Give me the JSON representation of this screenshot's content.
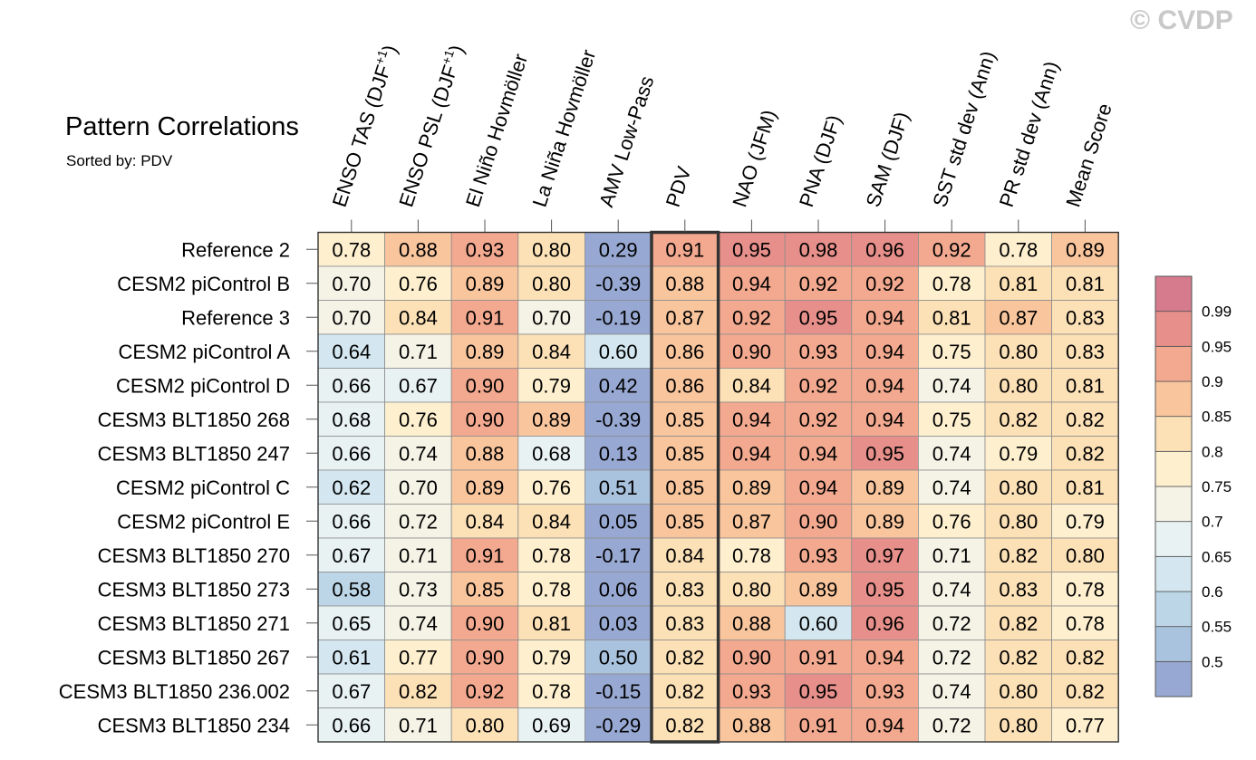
{
  "chart_data": {
    "type": "heatmap",
    "title": "Pattern Correlations",
    "subtitle": "Sorted by: PDV",
    "watermark": "© CVDP",
    "columns": [
      {
        "label": "ENSO TAS (DJF",
        "sup": "+1",
        "tail": ")"
      },
      {
        "label": "ENSO PSL (DJF",
        "sup": "+1",
        "tail": ")"
      },
      {
        "label": "El Niño Hovmöller",
        "sup": "",
        "tail": ""
      },
      {
        "label": "La Niña Hovmöller",
        "sup": "",
        "tail": ""
      },
      {
        "label": "AMV Low-Pass",
        "sup": "",
        "tail": ""
      },
      {
        "label": "PDV",
        "sup": "",
        "tail": ""
      },
      {
        "label": "NAO (JFM)",
        "sup": "",
        "tail": ""
      },
      {
        "label": "PNA (DJF)",
        "sup": "",
        "tail": ""
      },
      {
        "label": "SAM (DJF)",
        "sup": "",
        "tail": ""
      },
      {
        "label": "SST std dev (Ann)",
        "sup": "",
        "tail": ""
      },
      {
        "label": "PR std dev (Ann)",
        "sup": "",
        "tail": ""
      },
      {
        "label": "Mean Score",
        "sup": "",
        "tail": ""
      }
    ],
    "highlighted_column": "PDV",
    "rows": [
      {
        "label": "Reference 2",
        "values": [
          "0.78",
          "0.88",
          "0.93",
          "0.80",
          "0.29",
          "0.91",
          "0.95",
          "0.98",
          "0.96",
          "0.92",
          "0.78",
          "0.89"
        ]
      },
      {
        "label": "CESM2 piControl B",
        "values": [
          "0.70",
          "0.76",
          "0.89",
          "0.80",
          "-0.39",
          "0.88",
          "0.94",
          "0.92",
          "0.92",
          "0.78",
          "0.81",
          "0.81"
        ]
      },
      {
        "label": "Reference 3",
        "values": [
          "0.70",
          "0.84",
          "0.91",
          "0.70",
          "-0.19",
          "0.87",
          "0.92",
          "0.95",
          "0.94",
          "0.81",
          "0.87",
          "0.83"
        ]
      },
      {
        "label": "CESM2 piControl A",
        "values": [
          "0.64",
          "0.71",
          "0.89",
          "0.84",
          "0.60",
          "0.86",
          "0.90",
          "0.93",
          "0.94",
          "0.75",
          "0.80",
          "0.83"
        ]
      },
      {
        "label": "CESM2 piControl D",
        "values": [
          "0.66",
          "0.67",
          "0.90",
          "0.79",
          "0.42",
          "0.86",
          "0.84",
          "0.92",
          "0.94",
          "0.74",
          "0.80",
          "0.81"
        ]
      },
      {
        "label": "CESM3 BLT1850 268",
        "values": [
          "0.68",
          "0.76",
          "0.90",
          "0.89",
          "-0.39",
          "0.85",
          "0.94",
          "0.92",
          "0.94",
          "0.75",
          "0.82",
          "0.82"
        ]
      },
      {
        "label": "CESM3 BLT1850 247",
        "values": [
          "0.66",
          "0.74",
          "0.88",
          "0.68",
          "0.13",
          "0.85",
          "0.94",
          "0.94",
          "0.95",
          "0.74",
          "0.79",
          "0.82"
        ]
      },
      {
        "label": "CESM2 piControl C",
        "values": [
          "0.62",
          "0.70",
          "0.89",
          "0.76",
          "0.51",
          "0.85",
          "0.89",
          "0.94",
          "0.89",
          "0.74",
          "0.80",
          "0.81"
        ]
      },
      {
        "label": "CESM2 piControl E",
        "values": [
          "0.66",
          "0.72",
          "0.84",
          "0.84",
          "0.05",
          "0.85",
          "0.87",
          "0.90",
          "0.89",
          "0.76",
          "0.80",
          "0.79"
        ]
      },
      {
        "label": "CESM3 BLT1850 270",
        "values": [
          "0.67",
          "0.71",
          "0.91",
          "0.78",
          "-0.17",
          "0.84",
          "0.78",
          "0.93",
          "0.97",
          "0.71",
          "0.82",
          "0.80"
        ]
      },
      {
        "label": "CESM3 BLT1850 273",
        "values": [
          "0.58",
          "0.73",
          "0.85",
          "0.78",
          "0.06",
          "0.83",
          "0.80",
          "0.89",
          "0.95",
          "0.74",
          "0.83",
          "0.78"
        ]
      },
      {
        "label": "CESM3 BLT1850 271",
        "values": [
          "0.65",
          "0.74",
          "0.90",
          "0.81",
          "0.03",
          "0.83",
          "0.88",
          "0.60",
          "0.96",
          "0.72",
          "0.82",
          "0.78"
        ]
      },
      {
        "label": "CESM3 BLT1850 267",
        "values": [
          "0.61",
          "0.77",
          "0.90",
          "0.79",
          "0.50",
          "0.82",
          "0.90",
          "0.91",
          "0.94",
          "0.72",
          "0.82",
          "0.82"
        ]
      },
      {
        "label": "CESM3 BLT1850 236.002",
        "values": [
          "0.67",
          "0.82",
          "0.92",
          "0.78",
          "-0.15",
          "0.82",
          "0.93",
          "0.95",
          "0.93",
          "0.74",
          "0.80",
          "0.82"
        ]
      },
      {
        "label": "CESM3 BLT1850 234",
        "values": [
          "0.66",
          "0.71",
          "0.80",
          "0.69",
          "-0.29",
          "0.82",
          "0.88",
          "0.91",
          "0.94",
          "0.72",
          "0.80",
          "0.77"
        ]
      }
    ],
    "colorbar": {
      "levels": [
        "0.5",
        "0.55",
        "0.6",
        "0.65",
        "0.7",
        "0.75",
        "0.8",
        "0.85",
        "0.9",
        "0.95",
        "0.99"
      ],
      "colors": [
        "#97a8d2",
        "#a9c2de",
        "#bcd6e7",
        "#d4e7f0",
        "#e8f2f3",
        "#f4f3e6",
        "#fef0cf",
        "#fce0b6",
        "#f9c59d",
        "#f3a98f",
        "#e78f8a",
        "#d67b8d"
      ]
    }
  }
}
